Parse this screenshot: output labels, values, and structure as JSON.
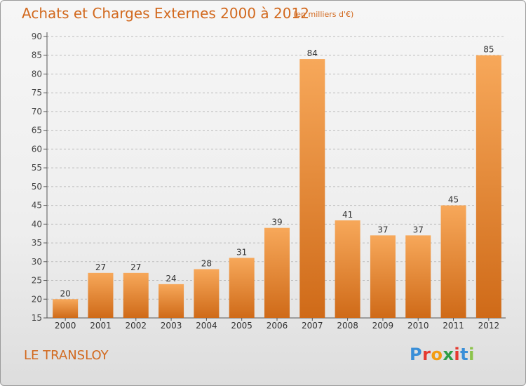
{
  "title": "Achats et Charges Externes 2000 à 2012",
  "subtitle": "(en milliers d'€)",
  "place": "LE TRANSLOY",
  "logo": {
    "letters": [
      "P",
      "r",
      "o",
      "x",
      "i",
      "t",
      "i"
    ],
    "colors": [
      "#3a8fd8",
      "#e5392f",
      "#f39c12",
      "#2d9e46",
      "#e5392f",
      "#3a8fd8",
      "#8bc34a"
    ]
  },
  "colors": {
    "bar_light": "#f7a85a",
    "bar_dark": "#cf6a18",
    "text_accent": "#d2691e",
    "axis": "#555555",
    "grid": "#bbbbbb"
  },
  "chart_data": {
    "type": "bar",
    "categories": [
      "2000",
      "2001",
      "2002",
      "2003",
      "2004",
      "2005",
      "2006",
      "2007",
      "2008",
      "2009",
      "2010",
      "2011",
      "2012"
    ],
    "values": [
      20,
      27,
      27,
      24,
      28,
      31,
      39,
      84,
      41,
      37,
      37,
      45,
      85
    ],
    "data_labels": [
      "20",
      "27",
      "27",
      "24",
      "28",
      "31",
      "39",
      "84",
      "41",
      "37",
      "37",
      "45",
      "85"
    ],
    "ylim": [
      15,
      90
    ],
    "yticks": [
      "15",
      "20",
      "25",
      "30",
      "35",
      "40",
      "45",
      "50",
      "55",
      "60",
      "65",
      "70",
      "75",
      "80",
      "85",
      "90"
    ],
    "grid": "horizontal dashed",
    "legend": "none"
  }
}
